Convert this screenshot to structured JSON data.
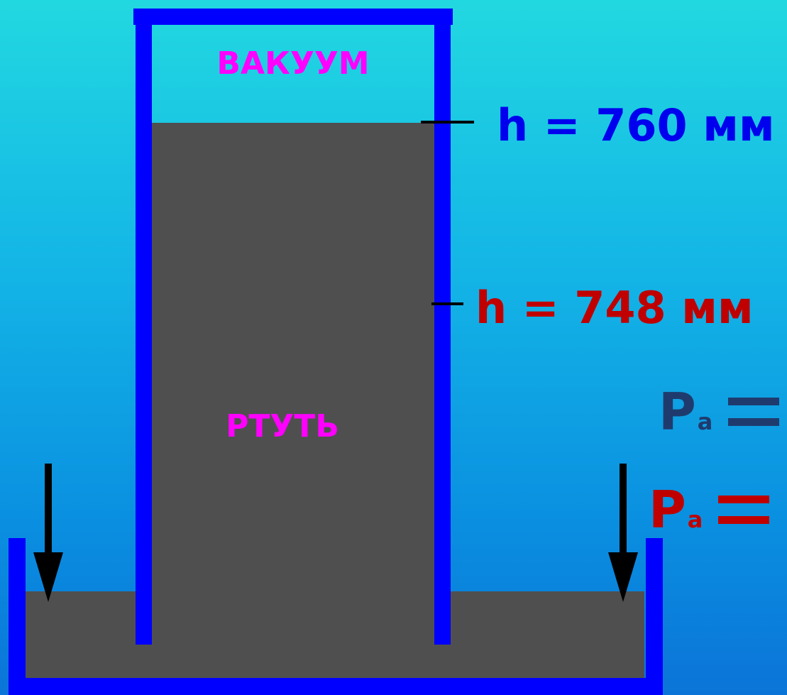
{
  "tube": {
    "vacuum_label": "ВАКУУМ",
    "mercury_label": "РТУТЬ"
  },
  "levels": [
    {
      "text": "h = 760 мм",
      "color": "#0000ee"
    },
    {
      "text": "h = 748 мм",
      "color": "#c00000"
    }
  ],
  "pressure": [
    {
      "symbol": "P",
      "subscript": "a",
      "color": "#1f3b6e"
    },
    {
      "symbol": "P",
      "subscript": "a",
      "color": "#c00000"
    }
  ],
  "colors": {
    "glass": "#0000ff",
    "mercury": "#4f4f4f",
    "label_magenta": "#ff00ff",
    "arrow": "#000000"
  }
}
